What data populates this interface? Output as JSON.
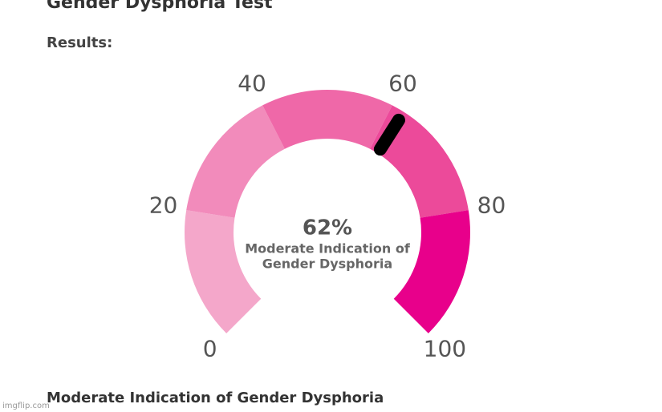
{
  "chart_data": {
    "type": "gauge",
    "title": "Gender Dysphoria Test",
    "subtitle": "Results:",
    "value": 62,
    "value_label": "62%",
    "center_label_lines": [
      "Moderate Indication of",
      "Gender Dysphoria"
    ],
    "result_text": "Moderate Indication of Gender Dysphoria",
    "watermark": "imgflip.com",
    "ylim": [
      0,
      100
    ],
    "yticks": [
      0,
      20,
      40,
      60,
      80,
      100
    ],
    "bands": [
      {
        "from": 0,
        "to": 20,
        "color": "#f4a7ca"
      },
      {
        "from": 20,
        "to": 40,
        "color": "#f28bbb"
      },
      {
        "from": 40,
        "to": 60,
        "color": "#ef68a8"
      },
      {
        "from": 60,
        "to": 80,
        "color": "#ec4a9a"
      },
      {
        "from": 80,
        "to": 100,
        "color": "#e8008b"
      }
    ],
    "needle_color": "#000000"
  }
}
